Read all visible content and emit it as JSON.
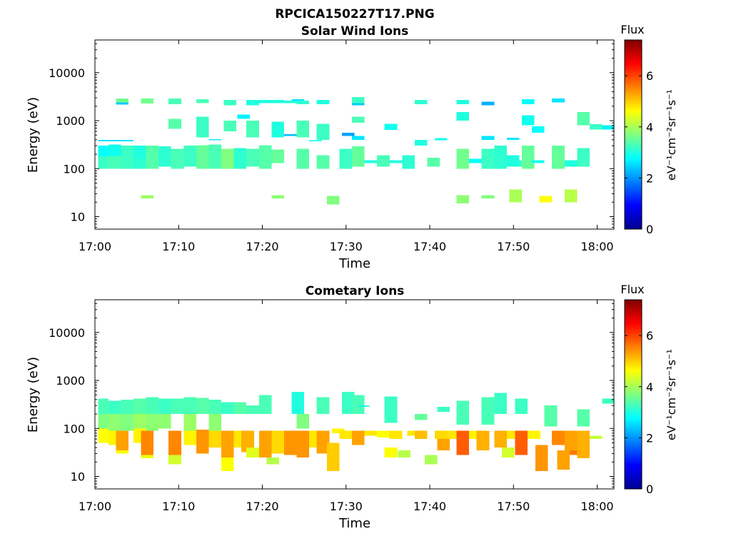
{
  "figure": {
    "title": "RPCICA150227T17.PNG"
  },
  "colorscale": {
    "stops": [
      "#00008f",
      "#0000ff",
      "#0080ff",
      "#00ffff",
      "#80ff80",
      "#ffff00",
      "#ff8000",
      "#ff0000",
      "#800000"
    ]
  },
  "chart_data": [
    {
      "type": "heatmap",
      "title": "Solar Wind Ions",
      "xlabel": "Time",
      "ylabel": "Energy (eV)",
      "yscale": "log",
      "xticks": [
        "17:00",
        "17:10",
        "17:20",
        "17:30",
        "17:40",
        "17:50",
        "18:00"
      ],
      "xtick_minutes": [
        0,
        10,
        20,
        30,
        40,
        50,
        60
      ],
      "xlim_minutes": [
        0,
        62
      ],
      "yticks": [
        10,
        100,
        1000,
        10000
      ],
      "ytick_labels": [
        "10",
        "100",
        "1000",
        "10000"
      ],
      "ylim": [
        5.5,
        48000
      ],
      "colorbar": {
        "label": "Flux",
        "unit": "eV⁻¹cm⁻²sr⁻¹s⁻¹",
        "ticks": [
          0,
          2,
          4,
          6
        ],
        "range": [
          0,
          7.4
        ]
      },
      "cells": [
        [
          0.4,
          1.6,
          100,
          180,
          3.2
        ],
        [
          0.4,
          1.6,
          180,
          300,
          2.8
        ],
        [
          0.4,
          4.6,
          370,
          400,
          2.6
        ],
        [
          1.6,
          3.1,
          100,
          180,
          3.3
        ],
        [
          1.6,
          3.1,
          180,
          320,
          2.9
        ],
        [
          2.5,
          4.0,
          2400,
          2900,
          3.6
        ],
        [
          2.5,
          4.0,
          2150,
          2400,
          2.4
        ],
        [
          3.1,
          4.6,
          100,
          300,
          3.2
        ],
        [
          4.6,
          6.1,
          100,
          160,
          3.1
        ],
        [
          4.6,
          6.1,
          160,
          300,
          3.0
        ],
        [
          5.5,
          7.0,
          2300,
          2900,
          3.6
        ],
        [
          5.5,
          7.0,
          24,
          28,
          3.9
        ],
        [
          6.1,
          7.6,
          100,
          300,
          3.4
        ],
        [
          7.6,
          9.1,
          110,
          290,
          3.1
        ],
        [
          8.8,
          10.3,
          680,
          1100,
          3.4
        ],
        [
          8.8,
          10.3,
          2200,
          2900,
          3.3
        ],
        [
          9.1,
          10.6,
          100,
          260,
          3.3
        ],
        [
          10.6,
          12.1,
          110,
          300,
          3.2
        ],
        [
          12.1,
          13.6,
          100,
          310,
          3.5
        ],
        [
          12.1,
          13.6,
          450,
          1200,
          3.2
        ],
        [
          12.1,
          13.6,
          2300,
          2800,
          3.3
        ],
        [
          13.6,
          15.1,
          100,
          320,
          3.3
        ],
        [
          13.6,
          15.1,
          390,
          410,
          2.6
        ],
        [
          15.1,
          16.6,
          100,
          260,
          3.7
        ],
        [
          15.4,
          16.9,
          600,
          1000,
          3.3
        ],
        [
          15.4,
          16.9,
          2100,
          2700,
          3.2
        ],
        [
          16.6,
          18.1,
          100,
          270,
          3.1
        ],
        [
          17.0,
          18.5,
          1100,
          1350,
          2.7
        ],
        [
          18.1,
          19.6,
          110,
          260,
          3.3
        ],
        [
          18.1,
          19.6,
          450,
          1000,
          3.3
        ],
        [
          18.1,
          19.6,
          2100,
          2700,
          3.0
        ],
        [
          19.6,
          21.1,
          100,
          310,
          3.4
        ],
        [
          19.6,
          21.1,
          2300,
          2700,
          3.0
        ],
        [
          21.1,
          22.6,
          130,
          250,
          3.5
        ],
        [
          21.1,
          22.6,
          450,
          950,
          3.0
        ],
        [
          21.1,
          22.6,
          24,
          28,
          3.8
        ],
        [
          21.1,
          22.6,
          2300,
          2700,
          3.0
        ],
        [
          22.6,
          24.1,
          2300,
          2600,
          3.0
        ],
        [
          23.5,
          25.0,
          2600,
          2800,
          2.6
        ],
        [
          22.6,
          24.1,
          480,
          520,
          2.3
        ],
        [
          24.1,
          25.6,
          100,
          260,
          3.4
        ],
        [
          24.1,
          25.6,
          450,
          1000,
          3.3
        ],
        [
          24.1,
          25.6,
          2200,
          2600,
          3.1
        ],
        [
          25.6,
          27.1,
          370,
          390,
          2.7
        ],
        [
          26.5,
          28.0,
          100,
          190,
          3.4
        ],
        [
          26.5,
          28.0,
          400,
          860,
          3.2
        ],
        [
          26.5,
          28.0,
          2200,
          2700,
          3.0
        ],
        [
          27.7,
          29.2,
          18,
          27,
          3.7
        ],
        [
          29.2,
          30.7,
          100,
          260,
          3.2
        ],
        [
          29.5,
          31.0,
          480,
          560,
          2.1
        ],
        [
          30.7,
          32.2,
          110,
          290,
          3.5
        ],
        [
          30.7,
          32.2,
          400,
          480,
          2.6
        ],
        [
          30.7,
          32.2,
          2300,
          3100,
          3.2
        ],
        [
          30.7,
          32.2,
          2100,
          2300,
          2.4
        ],
        [
          30.7,
          32.2,
          900,
          1200,
          3.3
        ],
        [
          32.2,
          33.7,
          130,
          150,
          3.0
        ],
        [
          33.7,
          35.2,
          110,
          190,
          3.3
        ],
        [
          34.6,
          36.1,
          640,
          860,
          2.9
        ],
        [
          35.2,
          36.7,
          130,
          150,
          3.0
        ],
        [
          36.7,
          38.2,
          100,
          190,
          3.1
        ],
        [
          38.2,
          39.7,
          2200,
          2700,
          3.1
        ],
        [
          38.2,
          39.7,
          300,
          400,
          3.0
        ],
        [
          39.7,
          41.2,
          110,
          170,
          3.4
        ],
        [
          40.6,
          42.1,
          390,
          430,
          2.9
        ],
        [
          43.2,
          44.7,
          100,
          260,
          3.6
        ],
        [
          43.2,
          44.7,
          1000,
          1500,
          3.0
        ],
        [
          43.2,
          44.7,
          2200,
          2700,
          3.0
        ],
        [
          43.2,
          44.7,
          19,
          28,
          3.8
        ],
        [
          44.7,
          46.2,
          130,
          160,
          2.8
        ],
        [
          46.2,
          47.7,
          100,
          260,
          3.2
        ],
        [
          46.2,
          47.7,
          400,
          480,
          2.6
        ],
        [
          46.2,
          47.7,
          2100,
          2500,
          2.2
        ],
        [
          46.2,
          47.7,
          24,
          28,
          3.7
        ],
        [
          47.7,
          49.2,
          100,
          300,
          3.1
        ],
        [
          49.2,
          50.7,
          110,
          190,
          3.0
        ],
        [
          49.2,
          50.7,
          400,
          440,
          2.6
        ],
        [
          49.5,
          51.0,
          20,
          37,
          4.0
        ],
        [
          50.7,
          52.2,
          110,
          150,
          3.2
        ],
        [
          51.0,
          52.5,
          100,
          300,
          3.5
        ],
        [
          51.0,
          52.5,
          800,
          1300,
          2.9
        ],
        [
          51.0,
          52.5,
          2200,
          2800,
          2.8
        ],
        [
          52.2,
          53.7,
          130,
          150,
          2.9
        ],
        [
          52.2,
          53.7,
          560,
          760,
          2.8
        ],
        [
          53.1,
          54.6,
          20,
          27,
          4.6
        ],
        [
          54.6,
          56.1,
          100,
          300,
          3.5
        ],
        [
          54.6,
          56.1,
          2400,
          2900,
          2.6
        ],
        [
          56.1,
          57.6,
          110,
          150,
          3.0
        ],
        [
          56.1,
          57.6,
          20,
          37,
          4.1
        ],
        [
          57.6,
          59.1,
          110,
          270,
          3.2
        ],
        [
          57.6,
          59.1,
          800,
          1500,
          3.4
        ],
        [
          59.1,
          60.6,
          650,
          850,
          3.2
        ],
        [
          60.6,
          62.0,
          650,
          800,
          2.7
        ]
      ]
    },
    {
      "type": "heatmap",
      "title": "Cometary Ions",
      "xlabel": "Time",
      "ylabel": "Energy (eV)",
      "yscale": "log",
      "xticks": [
        "17:00",
        "17:10",
        "17:20",
        "17:30",
        "17:40",
        "17:50",
        "18:00"
      ],
      "xtick_minutes": [
        0,
        10,
        20,
        30,
        40,
        50,
        60
      ],
      "xlim_minutes": [
        0,
        62
      ],
      "yticks": [
        10,
        100,
        1000,
        10000
      ],
      "ytick_labels": [
        "10",
        "100",
        "1000",
        "10000"
      ],
      "ylim": [
        5.5,
        48000
      ],
      "colorbar": {
        "label": "Flux",
        "unit": "eV⁻¹cm⁻²sr⁻¹s⁻¹",
        "ticks": [
          0,
          2,
          4,
          6
        ],
        "range": [
          0,
          7.4
        ]
      },
      "cells": [
        [
          0.4,
          1.6,
          200,
          420,
          3.3
        ],
        [
          0.4,
          1.6,
          100,
          200,
          3.7
        ],
        [
          0.4,
          1.6,
          50,
          100,
          4.6
        ],
        [
          1.6,
          3.1,
          200,
          380,
          3.2
        ],
        [
          1.6,
          3.1,
          90,
          200,
          3.8
        ],
        [
          1.6,
          3.1,
          45,
          90,
          4.7
        ],
        [
          2.5,
          4.0,
          35,
          90,
          5.3
        ],
        [
          2.5,
          4.0,
          30,
          35,
          4.6
        ],
        [
          3.1,
          4.6,
          200,
          400,
          3.3
        ],
        [
          3.1,
          4.6,
          90,
          200,
          3.7
        ],
        [
          4.6,
          6.1,
          200,
          420,
          3.4
        ],
        [
          4.6,
          6.1,
          100,
          200,
          3.9
        ],
        [
          4.6,
          6.1,
          50,
          100,
          4.7
        ],
        [
          5.5,
          7.0,
          28,
          90,
          5.5
        ],
        [
          5.5,
          7.0,
          24,
          28,
          4.5
        ],
        [
          6.1,
          7.6,
          200,
          450,
          3.3
        ],
        [
          6.1,
          7.6,
          90,
          200,
          3.8
        ],
        [
          7.6,
          9.1,
          200,
          420,
          3.2
        ],
        [
          7.6,
          9.1,
          100,
          200,
          3.8
        ],
        [
          8.8,
          10.3,
          28,
          90,
          5.5
        ],
        [
          8.8,
          10.3,
          18,
          28,
          4.3
        ],
        [
          9.1,
          10.6,
          200,
          420,
          3.3
        ],
        [
          10.6,
          12.1,
          200,
          450,
          3.3
        ],
        [
          10.6,
          12.1,
          90,
          200,
          3.9
        ],
        [
          10.6,
          12.1,
          45,
          90,
          4.7
        ],
        [
          12.1,
          13.6,
          30,
          95,
          5.4
        ],
        [
          12.1,
          13.6,
          200,
          430,
          3.4
        ],
        [
          13.6,
          15.1,
          200,
          400,
          3.3
        ],
        [
          13.6,
          15.1,
          90,
          200,
          3.8
        ],
        [
          13.6,
          15.1,
          40,
          90,
          4.9
        ],
        [
          15.1,
          16.6,
          25,
          90,
          5.3
        ],
        [
          15.1,
          16.6,
          13,
          25,
          4.6
        ],
        [
          15.1,
          16.6,
          200,
          350,
          3.2
        ],
        [
          16.6,
          18.1,
          200,
          350,
          3.4
        ],
        [
          16.6,
          18.1,
          40,
          90,
          4.8
        ],
        [
          17.5,
          19.0,
          32,
          90,
          5.2
        ],
        [
          18.1,
          19.6,
          200,
          300,
          3.3
        ],
        [
          18.1,
          19.6,
          25,
          40,
          4.4
        ],
        [
          19.6,
          21.1,
          25,
          90,
          5.3
        ],
        [
          19.6,
          21.1,
          200,
          500,
          3.3
        ],
        [
          20.5,
          22.0,
          18,
          25,
          4.1
        ],
        [
          21.1,
          22.6,
          30,
          90,
          4.9
        ],
        [
          22.6,
          24.1,
          28,
          90,
          5.4
        ],
        [
          23.5,
          25.0,
          200,
          580,
          3.0
        ],
        [
          24.1,
          25.6,
          100,
          200,
          3.7
        ],
        [
          24.1,
          25.6,
          25,
          90,
          5.4
        ],
        [
          25.6,
          27.1,
          40,
          90,
          4.8
        ],
        [
          26.5,
          28.0,
          200,
          450,
          3.3
        ],
        [
          26.5,
          28.0,
          30,
          90,
          5.3
        ],
        [
          27.7,
          29.2,
          13,
          50,
          5.0
        ],
        [
          28.3,
          29.8,
          80,
          100,
          4.7
        ],
        [
          29.2,
          30.7,
          60,
          90,
          4.8
        ],
        [
          29.5,
          31.0,
          200,
          580,
          3.2
        ],
        [
          30.7,
          32.2,
          45,
          90,
          5.3
        ],
        [
          30.7,
          32.2,
          200,
          500,
          3.3
        ],
        [
          31.3,
          32.8,
          280,
          300,
          3.0
        ],
        [
          32.2,
          33.7,
          70,
          90,
          4.8
        ],
        [
          33.7,
          35.2,
          65,
          90,
          4.6
        ],
        [
          34.6,
          36.1,
          25,
          40,
          4.6
        ],
        [
          34.6,
          36.1,
          130,
          460,
          3.2
        ],
        [
          35.2,
          36.7,
          60,
          90,
          4.8
        ],
        [
          36.2,
          37.7,
          25,
          35,
          4.1
        ],
        [
          37.3,
          38.8,
          70,
          90,
          4.8
        ],
        [
          38.2,
          39.7,
          60,
          90,
          5.1
        ],
        [
          38.2,
          39.7,
          150,
          200,
          3.5
        ],
        [
          39.4,
          40.9,
          18,
          28,
          4.0
        ],
        [
          40.6,
          42.1,
          60,
          90,
          4.9
        ],
        [
          40.9,
          42.4,
          35,
          60,
          5.3
        ],
        [
          40.9,
          42.4,
          220,
          280,
          3.2
        ],
        [
          42.1,
          43.6,
          60,
          90,
          4.8
        ],
        [
          43.2,
          44.7,
          28,
          90,
          5.8
        ],
        [
          43.2,
          44.7,
          120,
          380,
          3.3
        ],
        [
          44.7,
          46.2,
          60,
          90,
          4.7
        ],
        [
          45.6,
          47.1,
          35,
          90,
          5.2
        ],
        [
          46.2,
          47.7,
          120,
          450,
          3.3
        ],
        [
          47.7,
          49.2,
          40,
          90,
          5.2
        ],
        [
          47.7,
          49.2,
          200,
          550,
          3.2
        ],
        [
          48.6,
          50.1,
          25,
          40,
          4.3
        ],
        [
          49.2,
          50.7,
          60,
          90,
          4.8
        ],
        [
          50.2,
          51.7,
          28,
          90,
          5.8
        ],
        [
          50.2,
          51.7,
          200,
          420,
          3.2
        ],
        [
          51.7,
          53.2,
          60,
          90,
          4.7
        ],
        [
          52.6,
          54.1,
          13,
          45,
          5.4
        ],
        [
          53.7,
          55.2,
          110,
          300,
          3.4
        ],
        [
          54.6,
          56.1,
          45,
          90,
          5.5
        ],
        [
          55.2,
          56.7,
          14,
          35,
          5.3
        ],
        [
          56.1,
          57.6,
          35,
          90,
          5.3
        ],
        [
          56.7,
          58.2,
          28,
          35,
          5.6
        ],
        [
          57.6,
          59.1,
          24,
          90,
          5.2
        ],
        [
          57.6,
          59.1,
          110,
          250,
          3.4
        ],
        [
          59.1,
          60.6,
          60,
          70,
          4.2
        ],
        [
          60.6,
          62.0,
          330,
          420,
          3.2
        ]
      ]
    }
  ]
}
